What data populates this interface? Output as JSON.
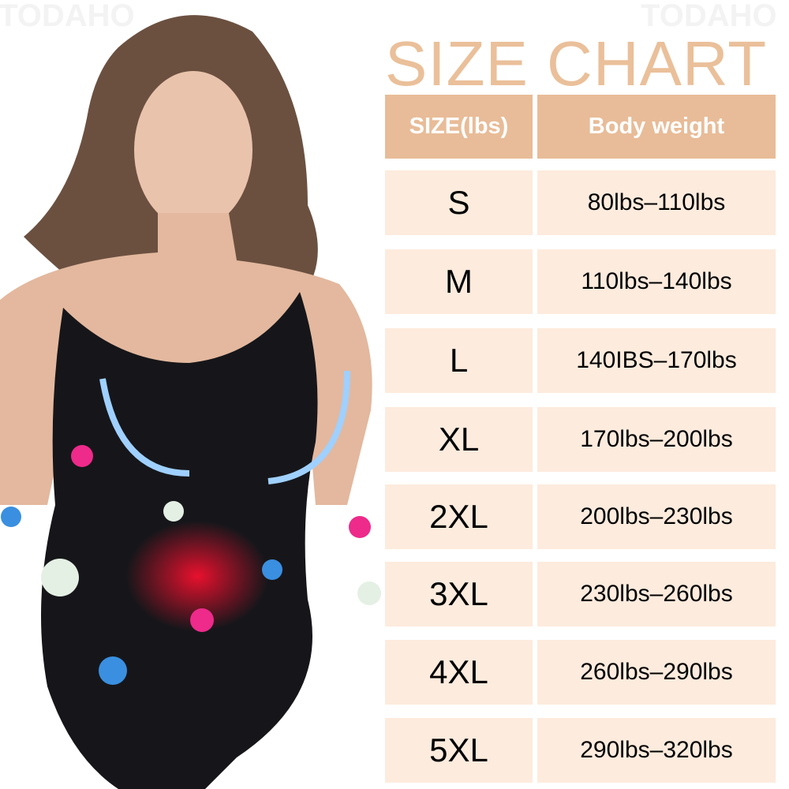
{
  "watermark": "TODAHO",
  "title": "SIZE CHART",
  "colors": {
    "title": "#eac09a",
    "header_bg": "#e8bc98",
    "row_bg": "#fdebdd"
  },
  "table": {
    "headers": [
      "SIZE(lbs)",
      "Body weight"
    ],
    "rows": [
      {
        "size": "S",
        "weight": "80lbs–110lbs"
      },
      {
        "size": "M",
        "weight": "110lbs–140lbs"
      },
      {
        "size": "L",
        "weight": "140IBS–170lbs"
      },
      {
        "size": "XL",
        "weight": "170lbs–200lbs"
      },
      {
        "size": "2XL",
        "weight": "200lbs–230lbs"
      },
      {
        "size": "3XL",
        "weight": "230lbs–260lbs"
      },
      {
        "size": "4XL",
        "weight": "260lbs–290lbs"
      },
      {
        "size": "5XL",
        "weight": "290lbs–320lbs"
      }
    ]
  }
}
